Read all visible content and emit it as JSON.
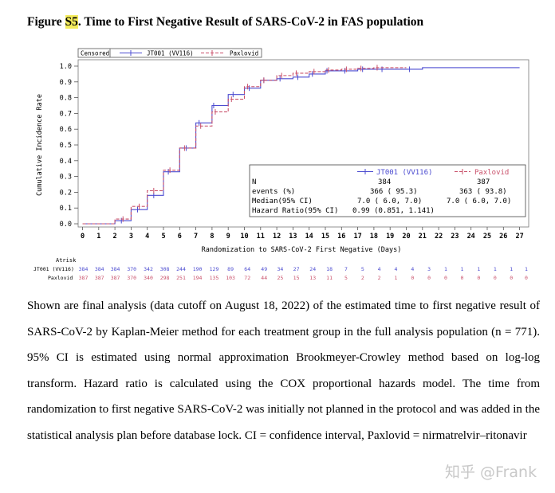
{
  "figure": {
    "label_prefix": "Figure ",
    "label_highlight": "S5",
    "title_rest": ". Time to First Negative Result of SARS-CoV-2 in FAS population"
  },
  "legend_top": {
    "censored": "Censored",
    "series1": "JT001 (VV116)",
    "series2": "Paxlovid"
  },
  "stats_table": {
    "col1": "JT001 (VV116)",
    "col2": "Paxlovid",
    "row_n_label": "N",
    "n1": "384",
    "n2": "387",
    "row_events_label": "events (%)",
    "events1": "366 ( 95.3)",
    "events2": "363 ( 93.8)",
    "row_median_label": "Median(95% CI)",
    "median1": "7.0 ( 6.0, 7.0)",
    "median2": "7.0 ( 6.0, 7.0)",
    "row_hr_label": "Hazard Ratio(95% CI)",
    "hr": "0.99 (0.851, 1.141)"
  },
  "atrisk": {
    "title": "Atrisk",
    "row1_label": "JT001 (VV116)",
    "row2_label": "Paxlovid",
    "row1": [
      384,
      384,
      384,
      370,
      342,
      308,
      244,
      190,
      129,
      89,
      64,
      49,
      34,
      27,
      24,
      18,
      7,
      5,
      4,
      4,
      4,
      3,
      1,
      1,
      1,
      1,
      1,
      1
    ],
    "row2": [
      387,
      387,
      387,
      370,
      340,
      298,
      251,
      194,
      135,
      103,
      72,
      44,
      25,
      15,
      13,
      11,
      5,
      2,
      2,
      1,
      0,
      0,
      0,
      0,
      0,
      0,
      0,
      0
    ]
  },
  "chart_data": {
    "type": "line",
    "step": true,
    "xlabel": "Randomization to SARS-CoV-2 First Negative (Days)",
    "ylabel": "Cumulative Incidence Rate",
    "xlim": [
      0,
      27
    ],
    "ylim": [
      0,
      1.0
    ],
    "xticks": [
      0,
      1,
      2,
      3,
      4,
      5,
      6,
      7,
      8,
      9,
      10,
      11,
      12,
      13,
      14,
      15,
      16,
      17,
      18,
      19,
      20,
      21,
      22,
      23,
      24,
      25,
      26,
      27
    ],
    "yticks": [
      "0.0",
      "0.1",
      "0.2",
      "0.3",
      "0.4",
      "0.5",
      "0.6",
      "0.7",
      "0.8",
      "0.9",
      "1.0"
    ],
    "series": [
      {
        "name": "JT001 (VV116)",
        "color": "#4b4bd0",
        "x": [
          0,
          2,
          3,
          4,
          5,
          6,
          7,
          8,
          9,
          10,
          11,
          12,
          13,
          14,
          15,
          17,
          21,
          27
        ],
        "y": [
          0,
          0.02,
          0.09,
          0.18,
          0.33,
          0.48,
          0.64,
          0.75,
          0.82,
          0.86,
          0.91,
          0.92,
          0.93,
          0.95,
          0.97,
          0.98,
          0.99,
          0.99
        ],
        "censored_x": [
          2.4,
          3.4,
          4.4,
          5.3,
          6.4,
          7.2,
          8.1,
          9.3,
          10.3,
          11.2,
          12.2,
          13.3,
          14.2,
          15.1,
          16.2,
          17.3,
          18.5,
          20.2
        ]
      },
      {
        "name": "Paxlovid",
        "color": "#c9506a",
        "dashed": true,
        "x": [
          0,
          2,
          3,
          4,
          5,
          6,
          7,
          8,
          9,
          10,
          11,
          12,
          13,
          14,
          15,
          16,
          17,
          18,
          20
        ],
        "y": [
          0,
          0.03,
          0.11,
          0.21,
          0.34,
          0.48,
          0.62,
          0.71,
          0.79,
          0.87,
          0.91,
          0.94,
          0.955,
          0.965,
          0.975,
          0.98,
          0.985,
          0.99,
          0.99
        ],
        "censored_x": [
          2.5,
          3.5,
          4.4,
          5.4,
          6.3,
          7.3,
          8.2,
          9.2,
          10.2,
          11.2,
          12.3,
          13.2,
          14.3,
          15.2,
          16.3,
          17.2,
          18.2
        ]
      }
    ]
  },
  "caption": "Shown are final analysis (data cutoff on August 18, 2022) of the estimated time to first negative result of SARS-CoV-2 by Kaplan-Meier method for each treatment group in the full analysis population (n = 771). 95% CI is estimated using normal approximation Brookmeyer-Crowley method based on log-log transform. Hazard ratio is calculated using the COX proportional hazards model. The time from randomization to first negative SARS-CoV-2 was initially not planned in the protocol and was added in the statistical analysis plan before database lock. CI = confidence interval, Paxlovid = nirmatrelvir–ritonavir",
  "watermark": "知乎 @Frank"
}
